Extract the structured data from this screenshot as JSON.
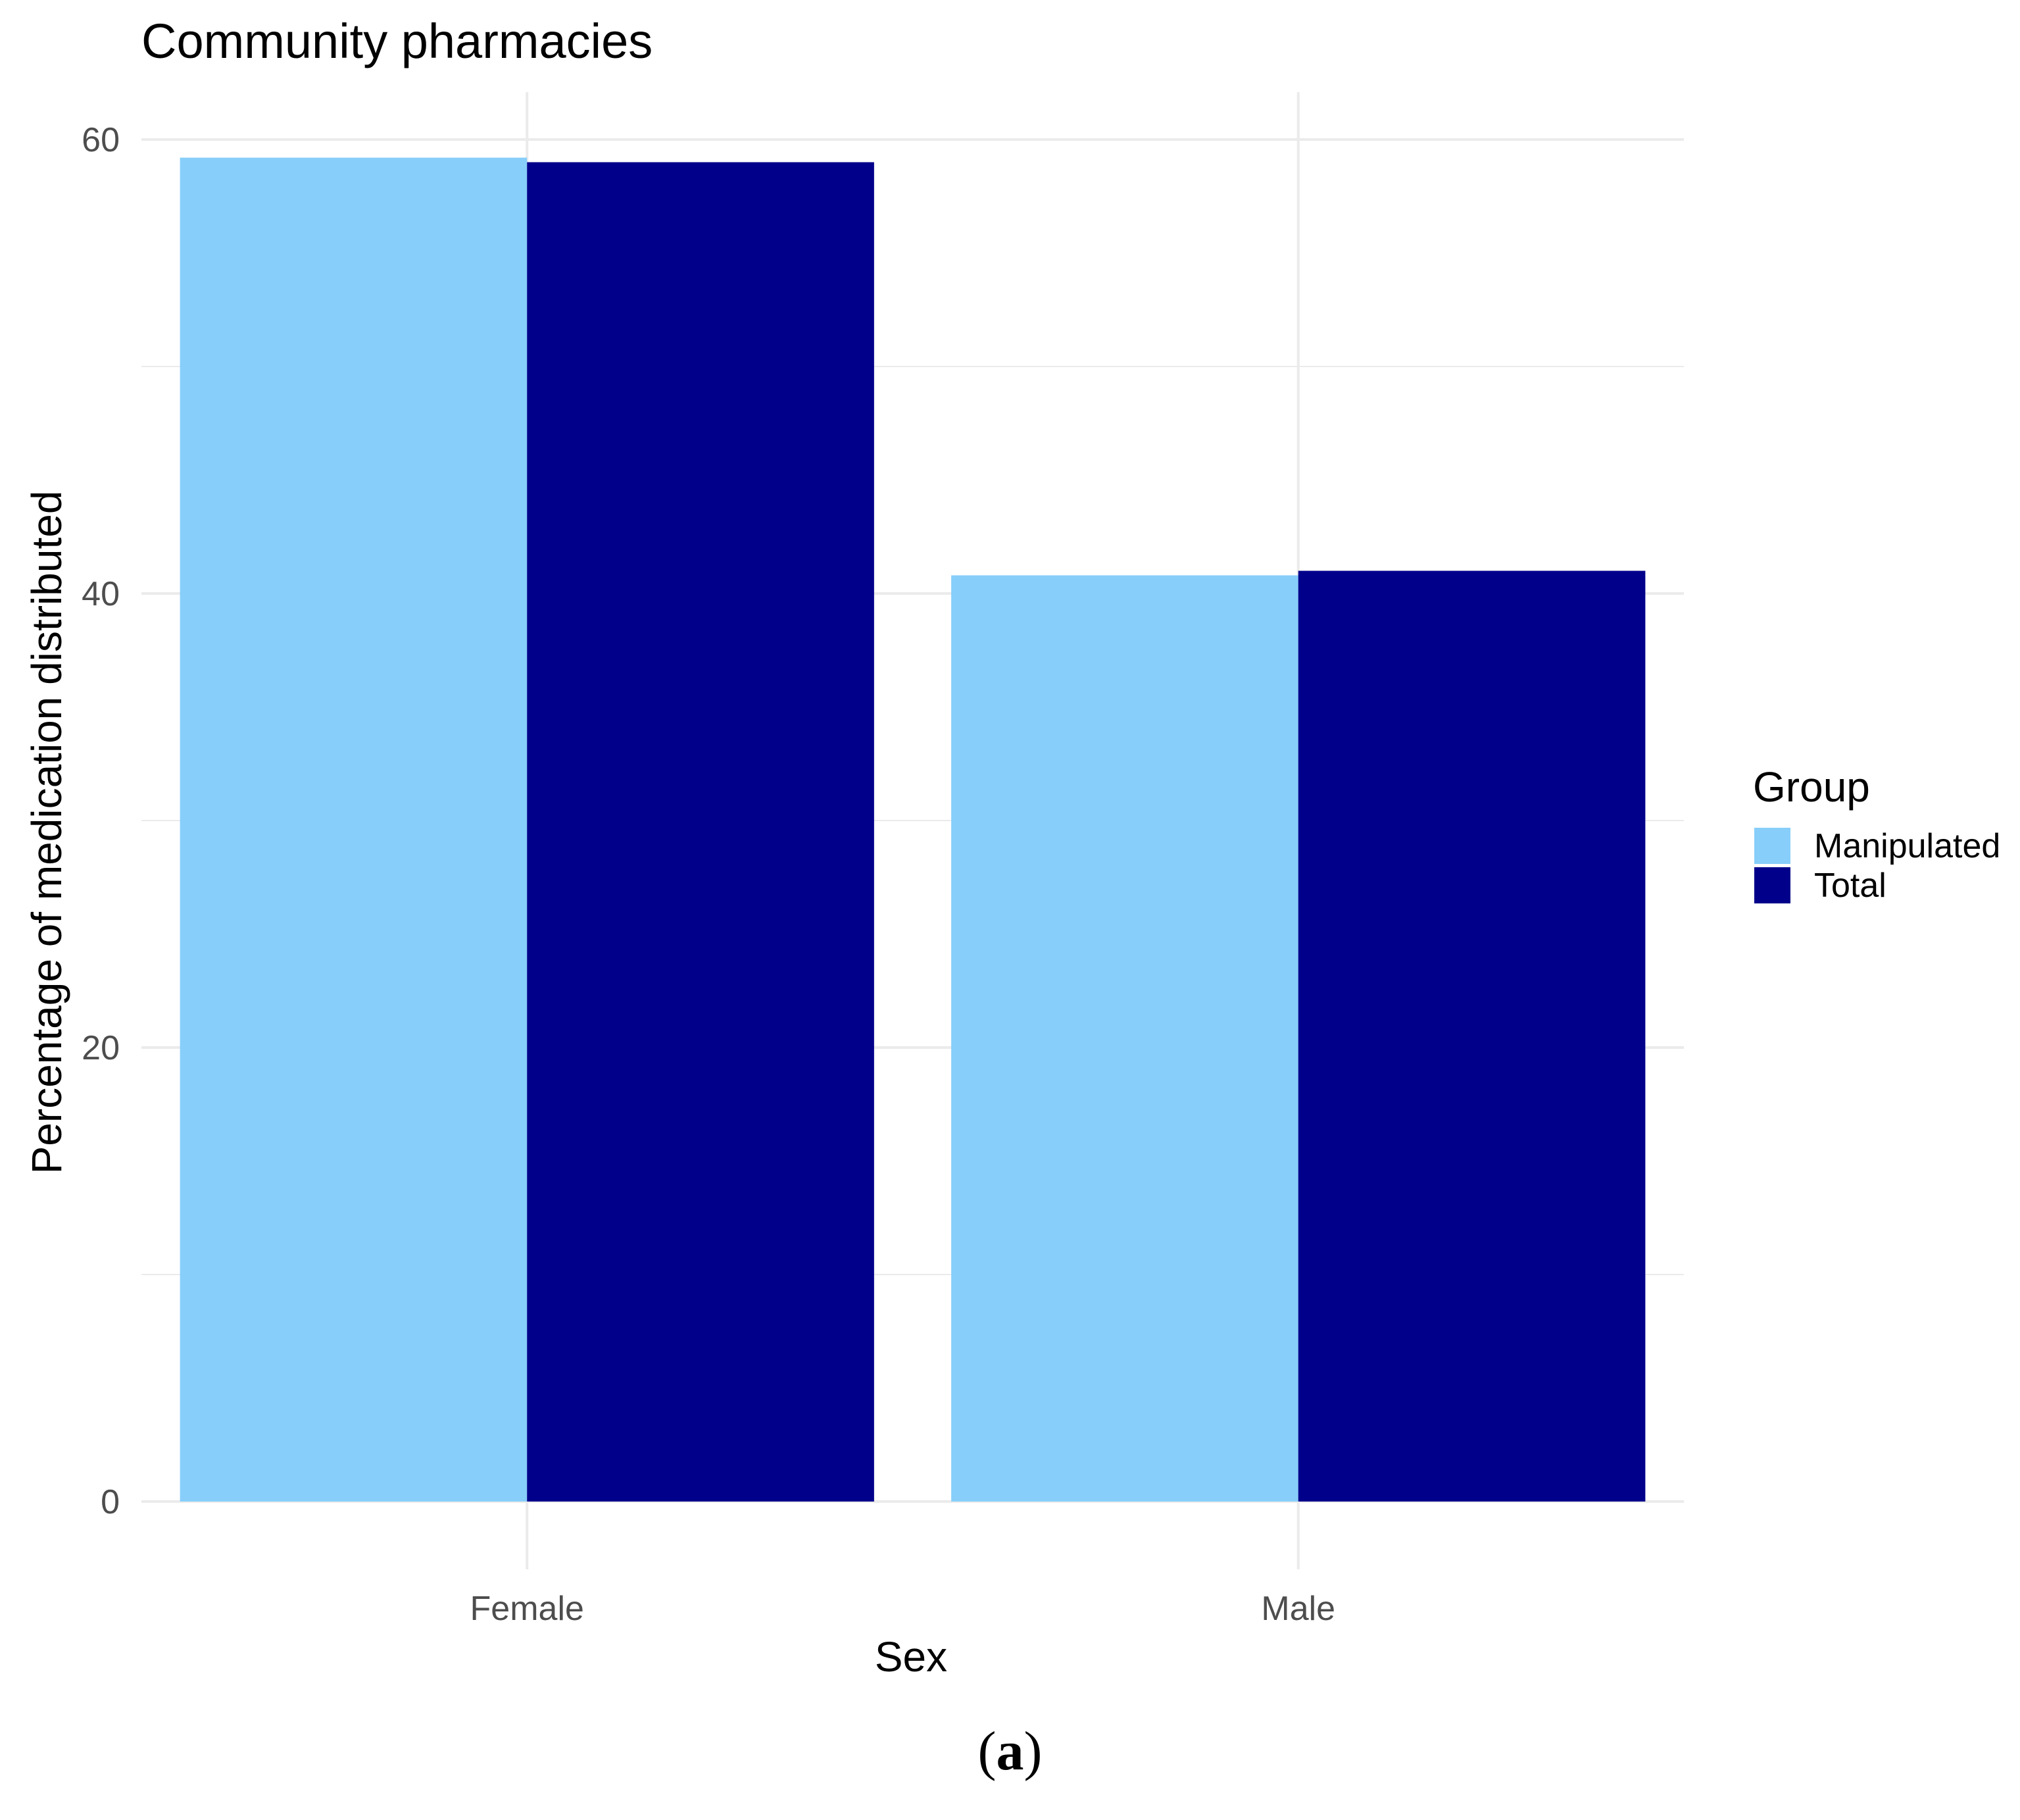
{
  "chart_data": {
    "type": "bar",
    "title": "Community pharmacies",
    "xlabel": "Sex",
    "ylabel": "Percentage of medication distributed",
    "categories": [
      "Female",
      "Male"
    ],
    "series": [
      {
        "name": "Manipulated",
        "color": "#87CEFA",
        "values": [
          59.2,
          40.8
        ]
      },
      {
        "name": "Total",
        "color": "#00008B",
        "values": [
          59.0,
          41.0
        ]
      }
    ],
    "ylim": [
      0,
      62
    ],
    "yticks": [
      0,
      20,
      40,
      60
    ],
    "ytick_labels": [
      "0",
      "20",
      "40",
      "60"
    ],
    "grid": true,
    "legend": {
      "title": "Group",
      "position": "right"
    }
  },
  "panel_label": {
    "open": "(",
    "letter": "a",
    "close": ")"
  },
  "colors": {
    "grid": "#ebebeb",
    "axis_text": "#4d4d4d",
    "text": "#000000"
  }
}
